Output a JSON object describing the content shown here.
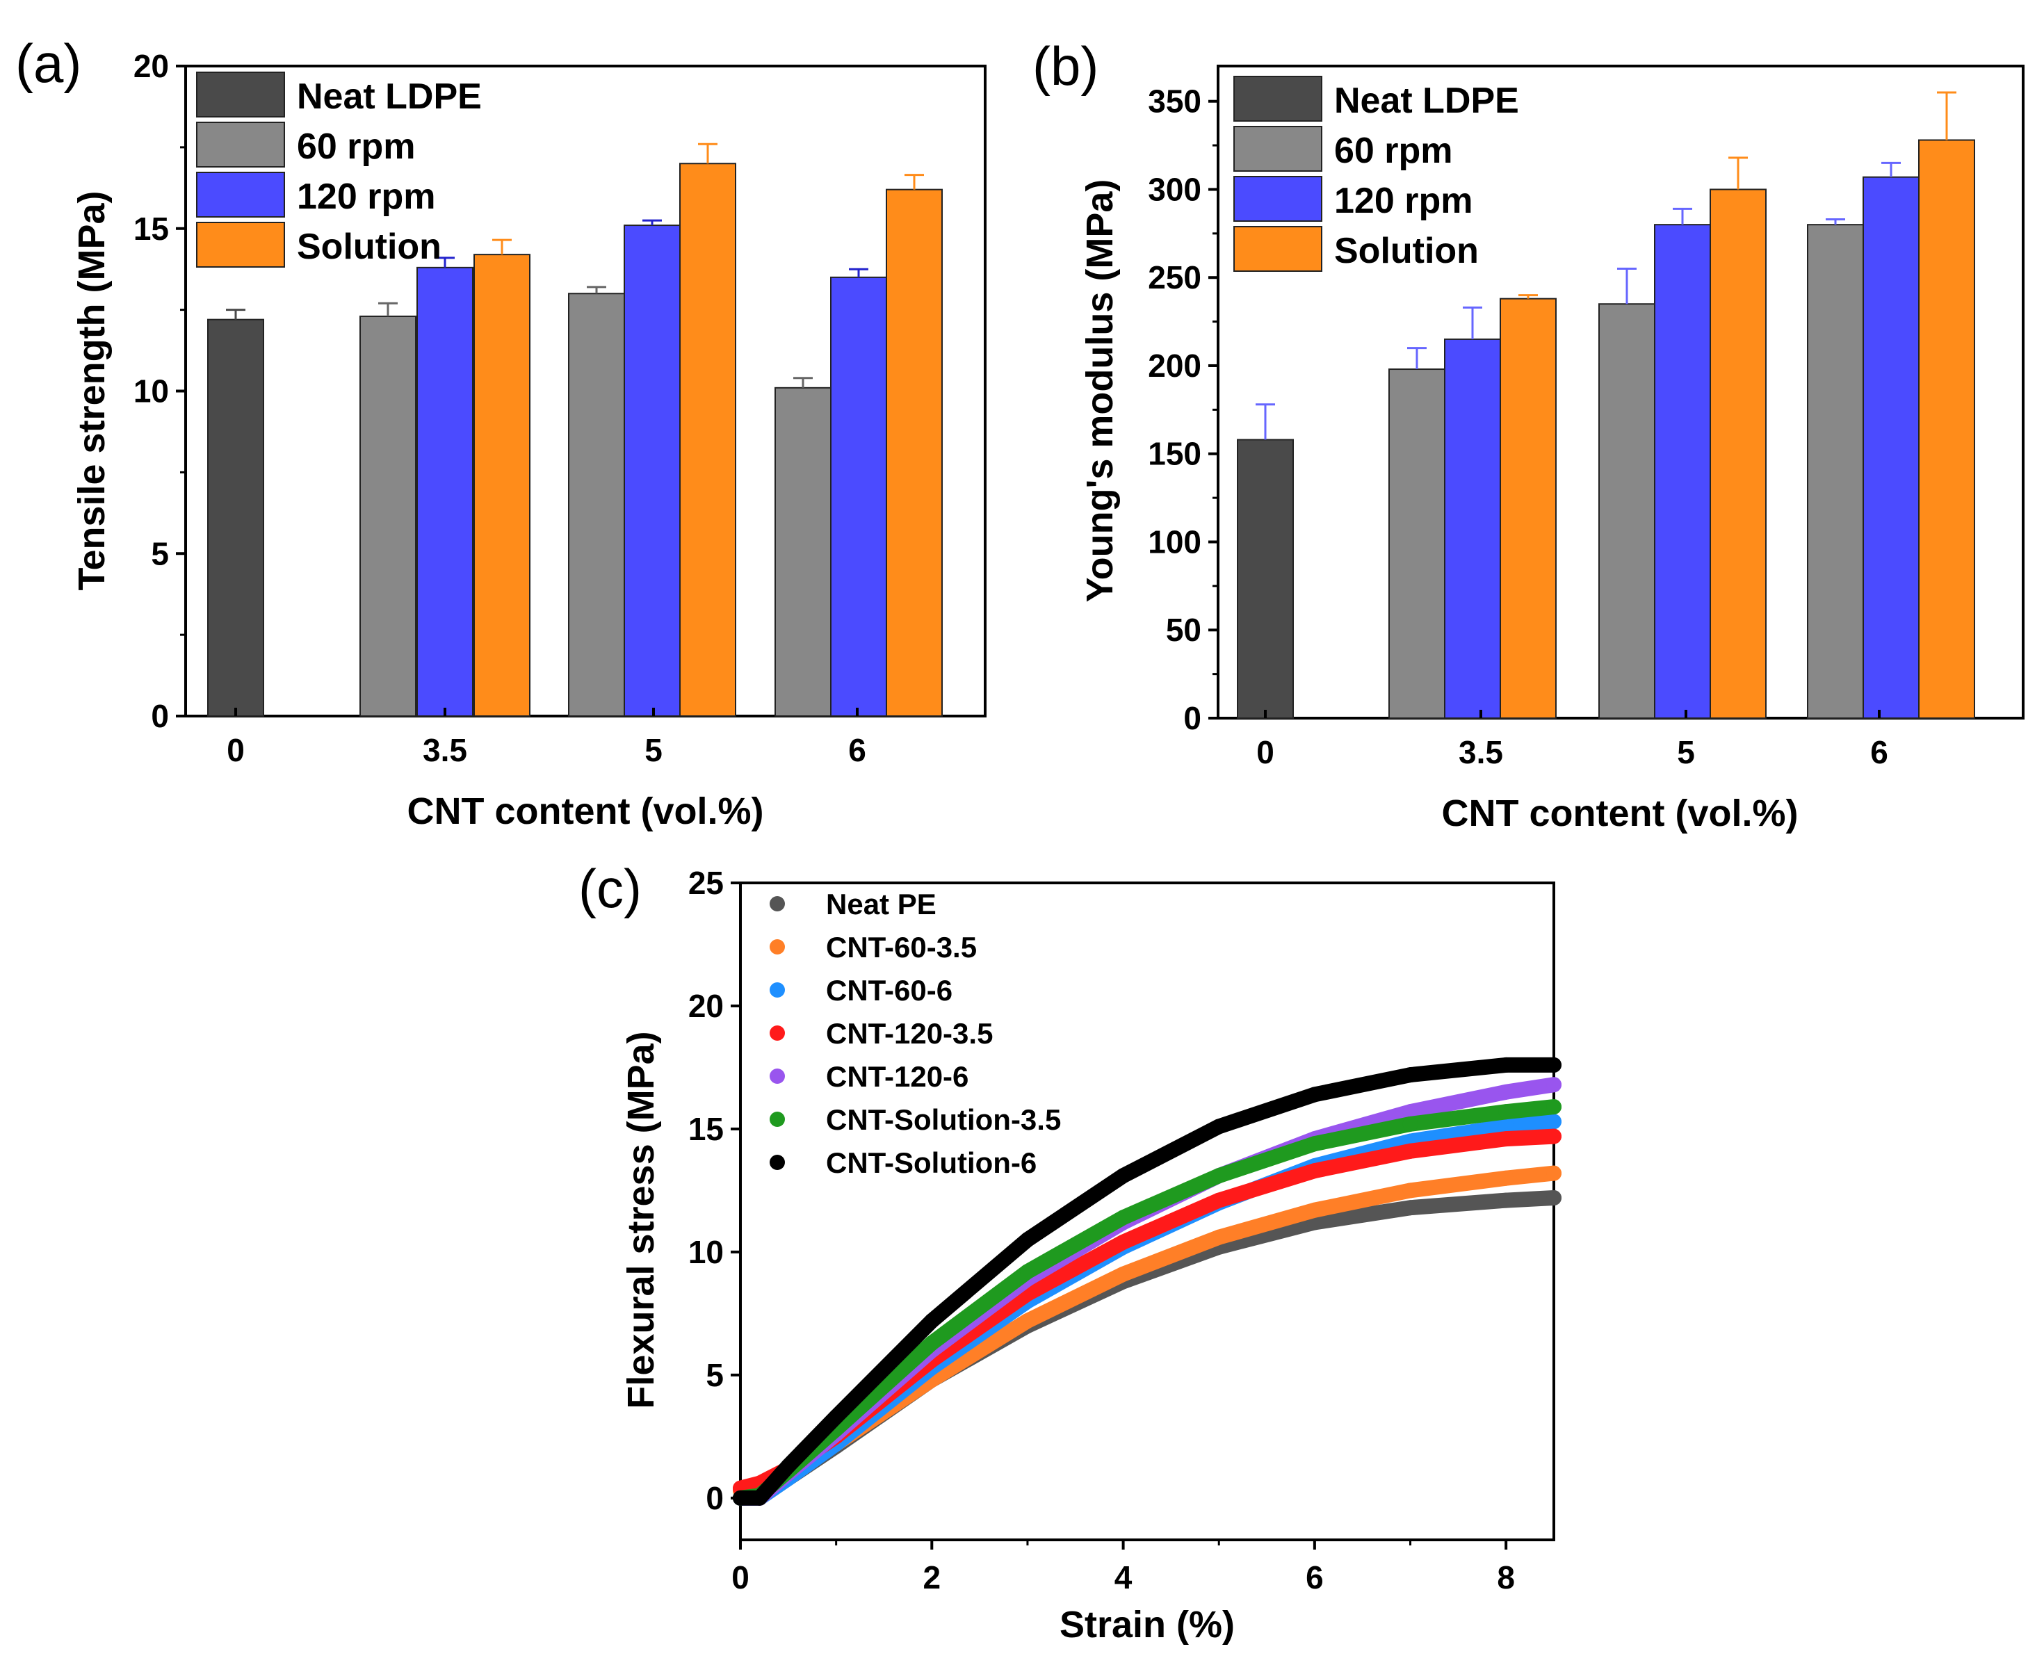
{
  "panel_labels": [
    "(a)",
    "(b)",
    "(c)"
  ],
  "chart_data": [
    {
      "id": "a",
      "type": "bar",
      "ylabel": "Tensile strength (MPa)",
      "xlabel": "CNT content (vol.%)",
      "categories": [
        "0",
        "3.5",
        "5",
        "6"
      ],
      "ylim": [
        0,
        20
      ],
      "yticks": [
        0,
        5,
        10,
        15,
        20
      ],
      "legend": "top-left",
      "series": [
        {
          "name": "Neat LDPE",
          "color": "#4a4a4a",
          "err_color": "#4a4a4a",
          "values": [
            12.2,
            null,
            null,
            null
          ],
          "errors": [
            0.3,
            null,
            null,
            null
          ]
        },
        {
          "name": "60 rpm",
          "color": "#888888",
          "err_color": "#666666",
          "values": [
            null,
            12.3,
            13.0,
            10.1
          ],
          "errors": [
            null,
            0.4,
            0.2,
            0.3
          ]
        },
        {
          "name": "120 rpm",
          "color": "#4b4bff",
          "err_color": "#2222cc",
          "values": [
            null,
            13.8,
            15.1,
            13.5
          ],
          "errors": [
            null,
            0.3,
            0.15,
            0.25
          ]
        },
        {
          "name": "Solution",
          "color": "#ff8c1a",
          "err_color": "#ff8c1a",
          "values": [
            null,
            14.2,
            17.0,
            16.2
          ],
          "errors": [
            null,
            0.45,
            0.6,
            0.45
          ]
        }
      ]
    },
    {
      "id": "b",
      "type": "bar",
      "ylabel": "Young's modulus (MPa)",
      "xlabel": "CNT content (vol.%)",
      "categories": [
        "0",
        "3.5",
        "5",
        "6"
      ],
      "ylim": [
        0,
        370
      ],
      "yticks": [
        0,
        50,
        100,
        150,
        200,
        250,
        300,
        350
      ],
      "legend": "top-left",
      "series": [
        {
          "name": "Neat LDPE",
          "color": "#4a4a4a",
          "err_color": "#6666ff",
          "values": [
            158,
            null,
            null,
            null
          ],
          "errors": [
            20,
            null,
            null,
            null
          ]
        },
        {
          "name": "60 rpm",
          "color": "#888888",
          "err_color": "#6666ff",
          "values": [
            null,
            198,
            235,
            280
          ],
          "errors": [
            null,
            12,
            20,
            3
          ]
        },
        {
          "name": "120 rpm",
          "color": "#4b4bff",
          "err_color": "#6666ff",
          "values": [
            null,
            215,
            280,
            307
          ],
          "errors": [
            null,
            18,
            9,
            8
          ]
        },
        {
          "name": "Solution",
          "color": "#ff8c1a",
          "err_color": "#ff8c1a",
          "values": [
            null,
            238,
            300,
            328
          ],
          "errors": [
            null,
            2,
            18,
            27
          ]
        }
      ]
    },
    {
      "id": "c",
      "type": "scatter",
      "ylabel": "Flexural stress (MPa)",
      "xlabel": "Strain (%)",
      "xlim": [
        0,
        8.5
      ],
      "ylim": [
        -1.7,
        25
      ],
      "xticks": [
        0,
        2,
        4,
        6,
        8
      ],
      "yticks": [
        0,
        5,
        10,
        15,
        20,
        25
      ],
      "legend": "top-left",
      "series": [
        {
          "name": "Neat PE",
          "color": "#555555",
          "x": [
            0,
            0.2,
            0.5,
            1,
            2,
            3,
            4,
            5,
            6,
            7,
            8,
            8.5
          ],
          "y": [
            0,
            0,
            0.8,
            2.1,
            4.8,
            7.0,
            8.8,
            10.2,
            11.2,
            11.8,
            12.1,
            12.2
          ]
        },
        {
          "name": "CNT-60-3.5",
          "color": "#ff7f27",
          "x": [
            0,
            0.2,
            0.5,
            1,
            2,
            3,
            4,
            5,
            6,
            7,
            8,
            8.5
          ],
          "y": [
            0.3,
            0.5,
            1.0,
            2.2,
            4.8,
            7.2,
            9.1,
            10.6,
            11.7,
            12.5,
            13.0,
            13.2
          ]
        },
        {
          "name": "CNT-60-6",
          "color": "#1e8fff",
          "x": [
            0,
            0.2,
            0.5,
            1,
            2,
            3,
            4,
            5,
            6,
            7,
            8,
            8.5
          ],
          "y": [
            0,
            0,
            0.8,
            2.2,
            5.3,
            8.0,
            10.2,
            12.0,
            13.5,
            14.5,
            15.1,
            15.3
          ]
        },
        {
          "name": "CNT-120-3.5",
          "color": "#ff1a1a",
          "x": [
            0,
            0.2,
            0.5,
            1,
            2,
            3,
            4,
            5,
            6,
            7,
            8,
            8.5
          ],
          "y": [
            0.4,
            0.6,
            1.2,
            2.5,
            5.6,
            8.3,
            10.4,
            12.1,
            13.3,
            14.1,
            14.6,
            14.7
          ]
        },
        {
          "name": "CNT-120-6",
          "color": "#9955ee",
          "x": [
            0,
            0.2,
            0.5,
            1,
            2,
            3,
            4,
            5,
            6,
            7,
            8,
            8.5
          ],
          "y": [
            0,
            0,
            1.0,
            2.6,
            6.0,
            8.9,
            11.2,
            13.1,
            14.6,
            15.7,
            16.5,
            16.8
          ]
        },
        {
          "name": "CNT-Solution-3.5",
          "color": "#1f9a1f",
          "x": [
            0,
            0.2,
            0.5,
            1,
            2,
            3,
            4,
            5,
            6,
            7,
            8,
            8.5
          ],
          "y": [
            0,
            0.1,
            1.1,
            2.8,
            6.3,
            9.2,
            11.4,
            13.1,
            14.4,
            15.2,
            15.7,
            15.9
          ]
        },
        {
          "name": "CNT-Solution-6",
          "color": "#000000",
          "x": [
            0,
            0.2,
            0.5,
            1,
            2,
            3,
            4,
            5,
            6,
            7,
            8,
            8.5
          ],
          "y": [
            0,
            0,
            1.3,
            3.3,
            7.2,
            10.5,
            13.1,
            15.1,
            16.4,
            17.2,
            17.6,
            17.6
          ]
        }
      ]
    }
  ]
}
